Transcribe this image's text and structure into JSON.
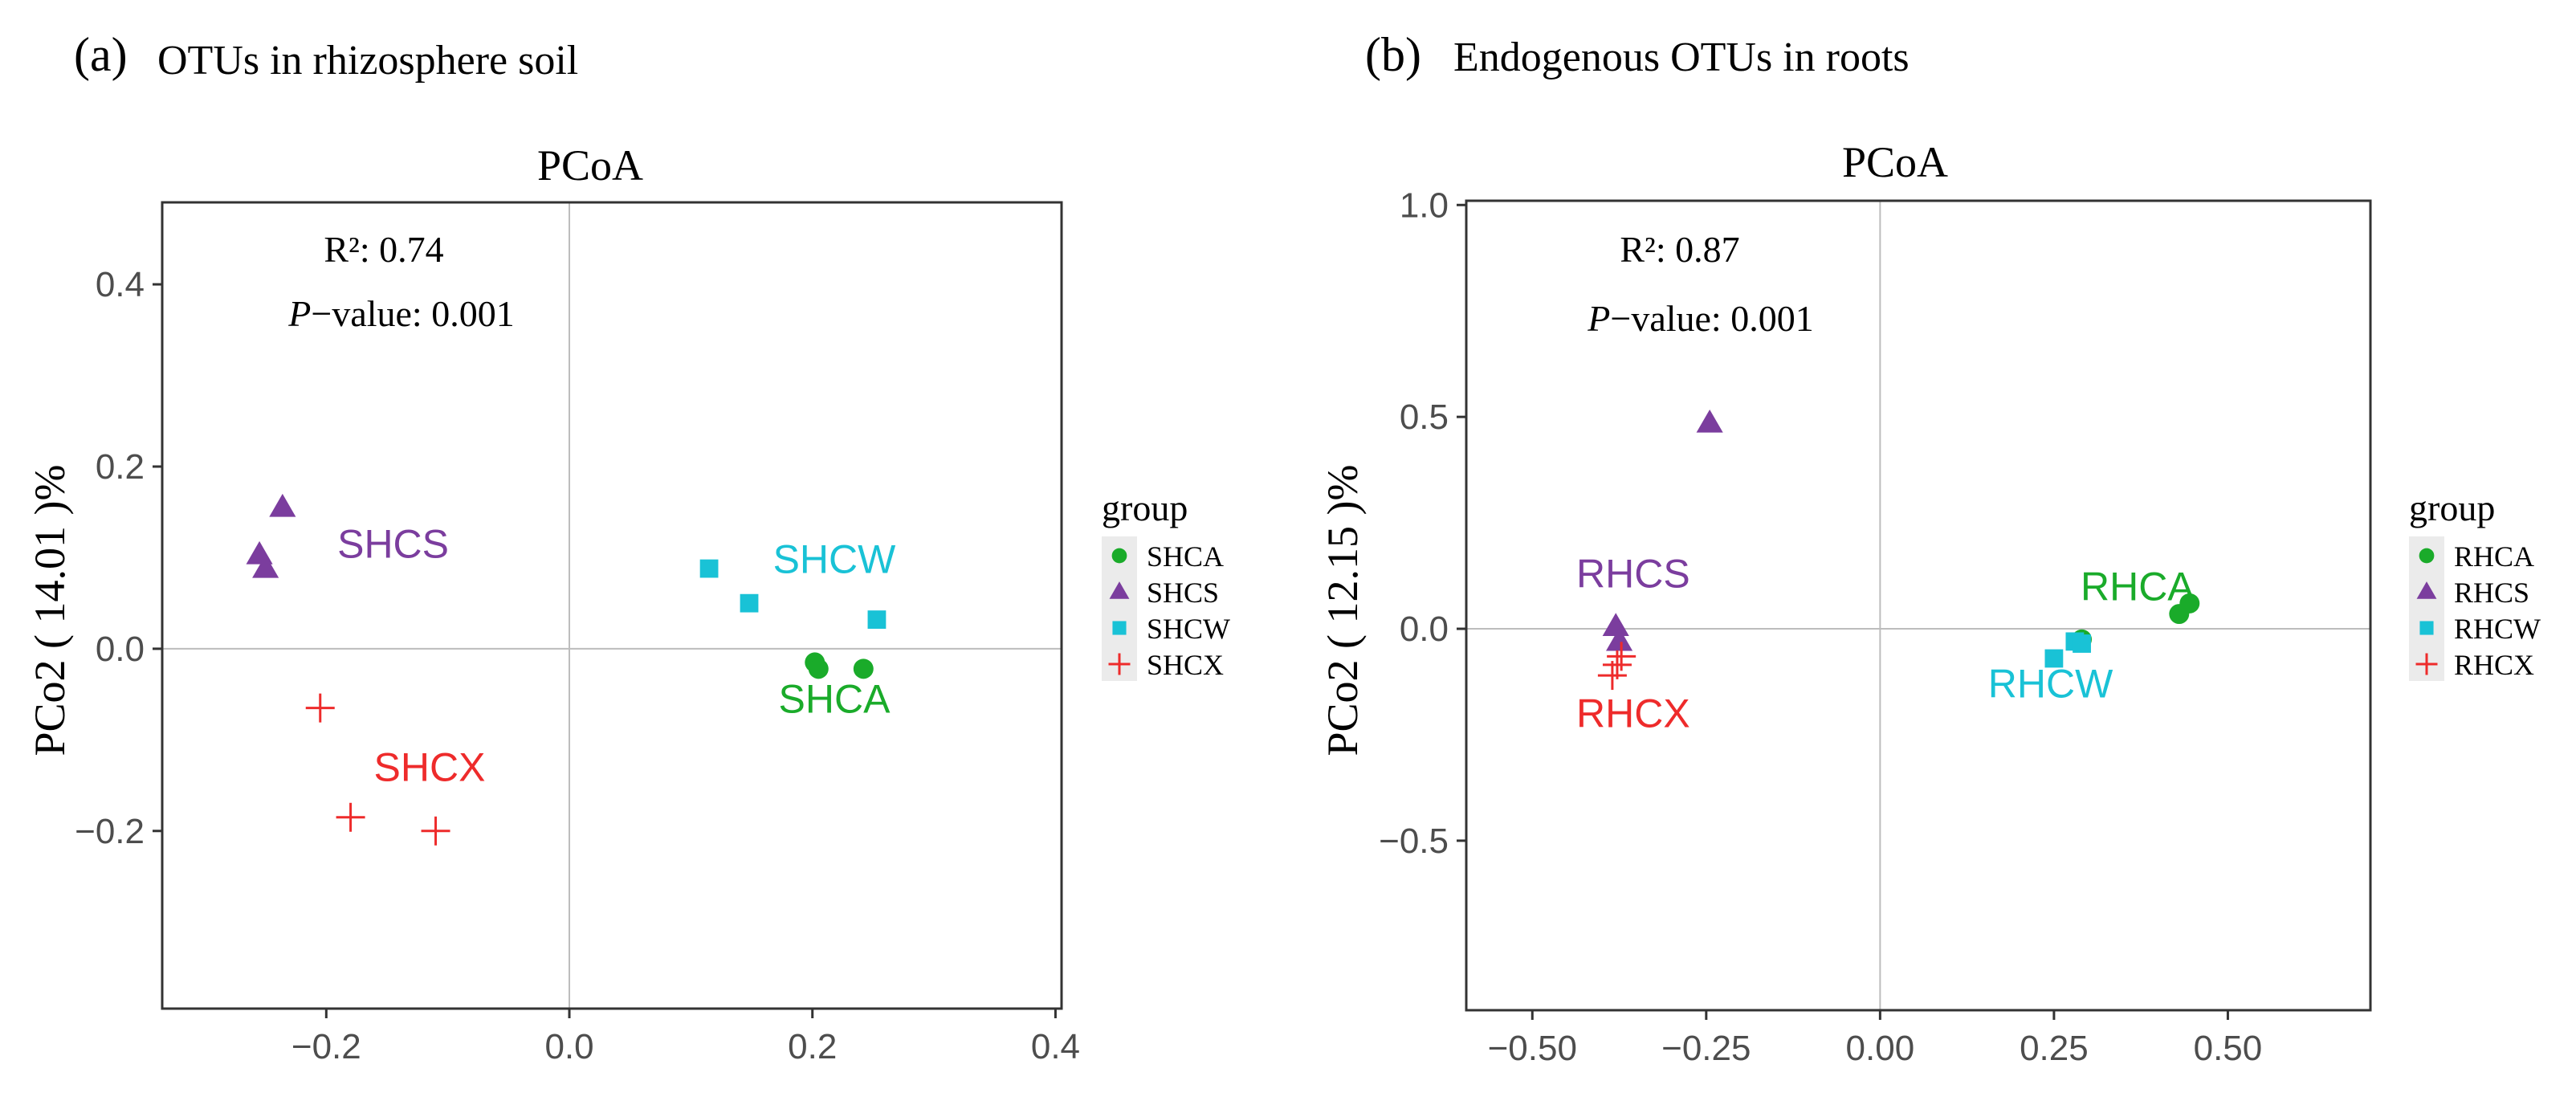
{
  "chart_data": [
    {
      "type": "scatter",
      "panel_label": "(a)",
      "caption": "OTUs in rhizosphere soil",
      "title": "PCoA",
      "xlabel": "",
      "ylabel": "PCo2 ( 14.01 )%",
      "xlim": [
        -0.335,
        0.405
      ],
      "ylim": [
        -0.395,
        0.49
      ],
      "xticks": [
        -0.2,
        0.0,
        0.2,
        0.4
      ],
      "xtick_labels": [
        "−0.2",
        "0.0",
        "0.2",
        "0.4"
      ],
      "yticks": [
        -0.2,
        0.0,
        0.2,
        0.4
      ],
      "ytick_labels": [
        "−0.2",
        "0.0",
        "0.2",
        "0.4"
      ],
      "zero_lines": true,
      "stats": {
        "r2": "R²: 0.74",
        "p_prefix": "P",
        "p_rest": "−value: 0.001"
      },
      "legend": {
        "title": "group",
        "position": "right",
        "entries": [
          "SHCA",
          "SHCS",
          "SHCW",
          "SHCX"
        ]
      },
      "series": [
        {
          "name": "SHCA",
          "marker": "circle",
          "color": "#1aab2a",
          "x": [
            0.202,
            0.205,
            0.242
          ],
          "y": [
            -0.015,
            -0.022,
            -0.022
          ],
          "label": "SHCA",
          "label_pos": [
            0.218,
            -0.055
          ]
        },
        {
          "name": "SHCS",
          "marker": "triangle",
          "color": "#7b3d9e",
          "x": [
            -0.236,
            -0.255,
            -0.25
          ],
          "y": [
            0.155,
            0.103,
            0.088
          ],
          "label": "SHCS",
          "label_pos": [
            -0.145,
            0.115
          ]
        },
        {
          "name": "SHCW",
          "marker": "square",
          "color": "#19c2d6",
          "x": [
            0.115,
            0.148,
            0.253
          ],
          "y": [
            0.088,
            0.05,
            0.032
          ],
          "label": "SHCW",
          "label_pos": [
            0.218,
            0.098
          ]
        },
        {
          "name": "SHCX",
          "marker": "plus",
          "color": "#ee2b2b",
          "x": [
            -0.205,
            -0.18,
            -0.11
          ],
          "y": [
            -0.065,
            -0.185,
            -0.2
          ],
          "label": "SHCX",
          "label_pos": [
            -0.115,
            -0.13
          ]
        }
      ]
    },
    {
      "type": "scatter",
      "panel_label": "(b)",
      "caption": "Endogenous OTUs in roots",
      "title": "PCoA",
      "xlabel": "",
      "ylabel": "PCo2 ( 12.15 )%",
      "xlim": [
        -0.595,
        0.705
      ],
      "ylim": [
        -0.9,
        1.01
      ],
      "xticks": [
        -0.5,
        -0.25,
        0.0,
        0.25,
        0.5
      ],
      "xtick_labels": [
        "−0.50",
        "−0.25",
        "0.00",
        "0.25",
        "0.50"
      ],
      "yticks": [
        -0.5,
        0.0,
        0.5,
        1.0
      ],
      "ytick_labels": [
        "−0.5",
        "0.0",
        "0.5",
        "1.0"
      ],
      "zero_lines": true,
      "stats": {
        "r2": "R²: 0.87",
        "p_prefix": "P",
        "p_rest": "−value: 0.001"
      },
      "legend": {
        "title": "group",
        "position": "right",
        "entries": [
          "RHCA",
          "RHCS",
          "RHCW",
          "RHCX"
        ]
      },
      "series": [
        {
          "name": "RHCA",
          "marker": "circle",
          "color": "#1aab2a",
          "x": [
            0.29,
            0.43,
            0.445
          ],
          "y": [
            -0.025,
            0.035,
            0.06
          ],
          "label": "RHCA",
          "label_pos": [
            0.37,
            0.1
          ]
        },
        {
          "name": "RHCS",
          "marker": "triangle",
          "color": "#7b3d9e",
          "x": [
            -0.245,
            -0.38,
            -0.375
          ],
          "y": [
            0.485,
            0.005,
            -0.03
          ],
          "label": "RHCS",
          "label_pos": [
            -0.355,
            0.13
          ]
        },
        {
          "name": "RHCW",
          "marker": "square",
          "color": "#19c2d6",
          "x": [
            0.25,
            0.28,
            0.29
          ],
          "y": [
            -0.07,
            -0.03,
            -0.035
          ],
          "label": "RHCW",
          "label_pos": [
            0.245,
            -0.13
          ]
        },
        {
          "name": "RHCX",
          "marker": "plus",
          "color": "#ee2b2b",
          "x": [
            -0.385,
            -0.378,
            -0.372
          ],
          "y": [
            -0.11,
            -0.085,
            -0.065
          ],
          "label": "RHCX",
          "label_pos": [
            -0.355,
            -0.2
          ]
        }
      ]
    }
  ]
}
